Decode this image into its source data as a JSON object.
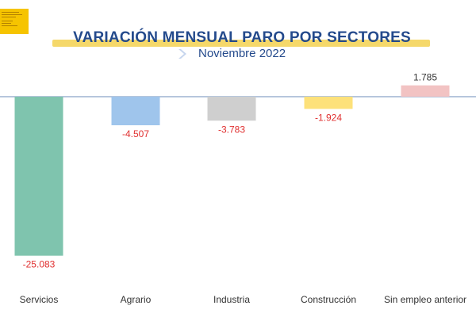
{
  "logo": {
    "brand_color": "#f6c400"
  },
  "header": {
    "title": "VARIACIÓN MENSUAL PARO POR SECTORES",
    "subtitle": "Noviembre 2022",
    "title_color": "#244a8c",
    "highlight_color": "#f5d86a"
  },
  "chart_data": {
    "type": "bar",
    "title": "VARIACIÓN MENSUAL PARO POR SECTORES",
    "subtitle": "Noviembre 2022",
    "categories": [
      "Servicios",
      "Agrario",
      "Industria",
      "Construcción",
      "Sin empleo anterior"
    ],
    "values": [
      -25083,
      -4507,
      -3783,
      -1924,
      1785
    ],
    "value_labels": [
      "-25.083",
      "-4.507",
      "-3.783",
      "-1.924",
      "1.785"
    ],
    "colors": [
      "#7fc4ae",
      "#9fc5ec",
      "#cfcfcf",
      "#fde17a",
      "#f2c3c3"
    ],
    "negative_label_color": "#e03030",
    "positive_label_color": "#333333",
    "baseline_color": "#8aa3c8",
    "ylim": [
      -25083,
      1785
    ],
    "grid": false,
    "legend": "none",
    "xlabel": "",
    "ylabel": ""
  }
}
